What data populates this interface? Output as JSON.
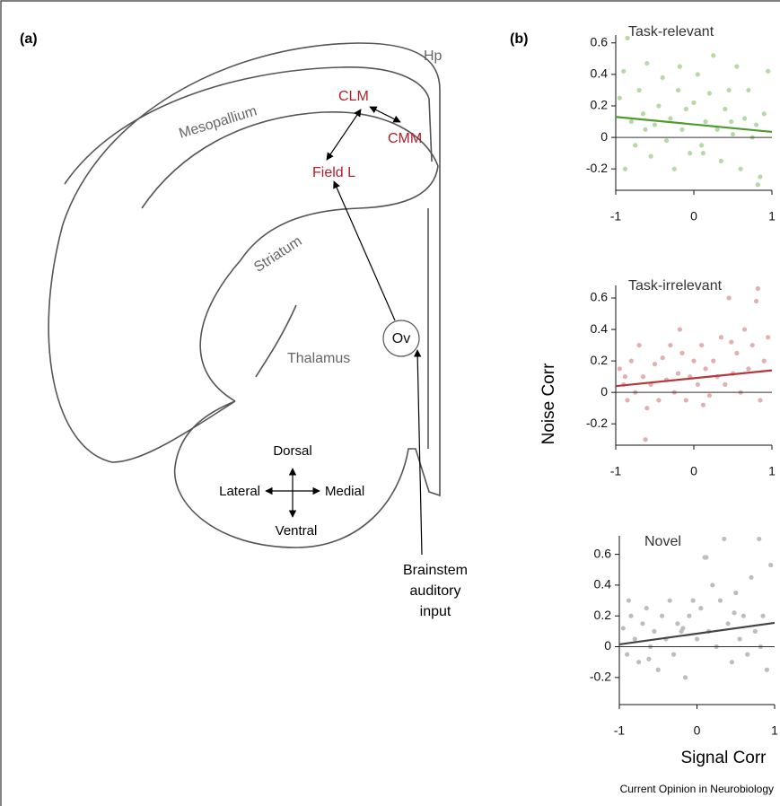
{
  "panel_labels": [
    "(a)",
    "(b)"
  ],
  "panel_a": {
    "labels": {
      "hp": "Hp",
      "mesopallium": "Mesopallium",
      "clm": "CLM",
      "cmm": "CMM",
      "field_l": "Field L",
      "striatum": "Striatum",
      "ov": "Ov",
      "thalamus": "Thalamus",
      "dorsal": "Dorsal",
      "lateral": "Lateral",
      "medial": "Medial",
      "ventral": "Ventral",
      "input": [
        "Brainstem",
        "auditory",
        "input"
      ]
    }
  },
  "axis_labels": {
    "y": "Noise Corr",
    "x": "Signal Corr"
  },
  "credit": "Current Opinion in Neurobiology",
  "chart_data": [
    {
      "type": "scatter",
      "title": "Task-relevant",
      "color": "#b7d9a5",
      "x": [
        -0.95,
        -0.9,
        -0.85,
        -0.8,
        -0.75,
        -0.7,
        -0.65,
        -0.6,
        -0.55,
        -0.5,
        -0.45,
        -0.4,
        -0.35,
        -0.3,
        -0.25,
        -0.2,
        -0.15,
        -0.1,
        -0.05,
        0,
        0.05,
        0.1,
        0.15,
        0.2,
        0.25,
        0.3,
        0.35,
        0.4,
        0.45,
        0.5,
        0.55,
        0.6,
        0.65,
        0.7,
        0.75,
        0.8,
        0.85,
        0.9,
        0.95,
        -0.88,
        -0.62,
        -0.18,
        0.12,
        0.48,
        0.82
      ],
      "values": [
        0.25,
        0.42,
        0.63,
        0.1,
        -0.05,
        0.3,
        0.15,
        0.47,
        -0.12,
        0.08,
        0.2,
        0.38,
        -0.02,
        0.12,
        -0.2,
        0.3,
        0.05,
        0.18,
        -0.1,
        0.22,
        0.4,
        -0.05,
        0.1,
        0.28,
        0.52,
        0.05,
        -0.15,
        0.18,
        0.3,
        0.02,
        0.45,
        -0.2,
        0.12,
        0.3,
        0.0,
        0.08,
        -0.25,
        0.15,
        0.42,
        -0.2,
        0.05,
        0.45,
        -0.1,
        0.1,
        -0.3
      ],
      "fit": {
        "x": [
          -1,
          1
        ],
        "values": [
          0.13,
          0.035
        ],
        "color": "#4e9a2e"
      },
      "hline": 0,
      "xlim": [
        -1,
        1
      ],
      "ylim": [
        -0.33,
        0.65
      ],
      "xticks": [
        -1,
        0,
        1
      ],
      "yticks": [
        -0.2,
        0,
        0.2,
        0.4,
        0.6
      ]
    },
    {
      "type": "scatter",
      "title": "Task-irrelevant",
      "color": "#e2b0b0",
      "x": [
        -0.95,
        -0.9,
        -0.85,
        -0.8,
        -0.75,
        -0.7,
        -0.65,
        -0.6,
        -0.55,
        -0.5,
        -0.45,
        -0.4,
        -0.35,
        -0.3,
        -0.25,
        -0.2,
        -0.15,
        -0.1,
        -0.05,
        0,
        0.05,
        0.1,
        0.15,
        0.2,
        0.25,
        0.3,
        0.35,
        0.4,
        0.45,
        0.5,
        0.55,
        0.6,
        0.65,
        0.7,
        0.75,
        0.8,
        0.85,
        0.9,
        0.95,
        -0.88,
        -0.62,
        -0.18,
        0.12,
        0.48,
        0.82
      ],
      "values": [
        0.15,
        0.05,
        -0.05,
        0.2,
        0.0,
        0.3,
        0.1,
        -0.1,
        0.05,
        0.18,
        -0.05,
        0.22,
        0.08,
        0.3,
        0.0,
        0.12,
        0.25,
        -0.05,
        0.1,
        0.2,
        0.05,
        0.3,
        0.15,
        -0.02,
        0.2,
        0.1,
        0.35,
        0.05,
        0.6,
        0.12,
        0.25,
        0.0,
        0.4,
        0.15,
        0.3,
        0.58,
        -0.05,
        0.2,
        0.35,
        0.1,
        -0.3,
        0.4,
        -0.08,
        0.32,
        0.66
      ],
      "fit": {
        "x": [
          -1,
          1
        ],
        "values": [
          0.04,
          0.14
        ],
        "color": "#b5393c"
      },
      "hline": 0,
      "xlim": [
        -1,
        1
      ],
      "ylim": [
        -0.33,
        0.68
      ],
      "xticks": [
        -1,
        0,
        1
      ],
      "yticks": [
        -0.2,
        0,
        0.2,
        0.4,
        0.6
      ]
    },
    {
      "type": "scatter",
      "title": "Novel",
      "color": "#bdbdbd",
      "x": [
        -0.95,
        -0.9,
        -0.85,
        -0.8,
        -0.75,
        -0.7,
        -0.65,
        -0.6,
        -0.55,
        -0.5,
        -0.45,
        -0.4,
        -0.35,
        -0.3,
        -0.25,
        -0.2,
        -0.15,
        -0.1,
        -0.05,
        0,
        0.05,
        0.1,
        0.15,
        0.2,
        0.25,
        0.3,
        0.35,
        0.4,
        0.45,
        0.5,
        0.55,
        0.6,
        0.65,
        0.7,
        0.75,
        0.8,
        0.85,
        0.9,
        0.95,
        -0.88,
        -0.62,
        -0.18,
        0.12,
        0.48,
        0.82
      ],
      "values": [
        0.12,
        -0.05,
        0.2,
        0.05,
        -0.1,
        0.15,
        0.25,
        0.0,
        0.1,
        -0.15,
        0.2,
        0.05,
        0.3,
        -0.05,
        0.15,
        0.1,
        -0.2,
        0.2,
        0.3,
        0.05,
        0.25,
        0.58,
        0.1,
        0.4,
        0.0,
        0.3,
        0.7,
        0.15,
        -0.1,
        0.35,
        0.05,
        0.2,
        -0.05,
        0.45,
        0.1,
        0.7,
        0.2,
        -0.15,
        0.53,
        0.3,
        -0.08,
        0.12,
        0.58,
        0.22,
        0.0
      ],
      "fit": {
        "x": [
          -1,
          1
        ],
        "values": [
          0.015,
          0.155
        ],
        "color": "#444444"
      },
      "hline": 0,
      "xlim": [
        -1,
        1
      ],
      "ylim": [
        -0.37,
        0.72
      ],
      "xticks": [
        -1,
        0,
        1
      ],
      "yticks": [
        -0.2,
        0,
        0.2,
        0.4,
        0.6
      ]
    }
  ]
}
